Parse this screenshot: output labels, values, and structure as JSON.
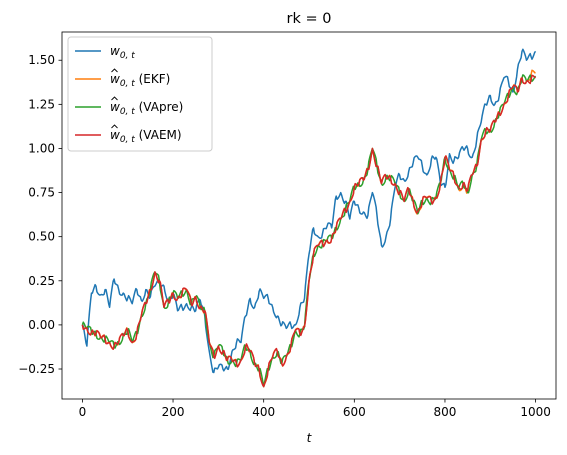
{
  "chart_data": {
    "type": "line",
    "title": "rk = 0",
    "xlabel": "t",
    "ylabel": "",
    "xlim": [
      -45,
      1045
    ],
    "ylim": [
      -0.42,
      1.66
    ],
    "xticks": [
      0,
      200,
      400,
      600,
      800,
      1000
    ],
    "xtick_labels": [
      "0",
      "200",
      "400",
      "600",
      "800",
      "1000"
    ],
    "yticks": [
      -0.25,
      0.0,
      0.25,
      0.5,
      0.75,
      1.0,
      1.25,
      1.5
    ],
    "ytick_labels": [
      "−0.25",
      "0.00",
      "0.25",
      "0.50",
      "0.75",
      "1.00",
      "1.25",
      "1.50"
    ],
    "grid": false,
    "legend_position": "top-left",
    "series": [
      {
        "name": "w0,t",
        "legend_main": "w",
        "legend_sub": "0, t",
        "legend_suffix": "",
        "hat": false,
        "color": "#1f77b4",
        "x": [
          0,
          10,
          20,
          30,
          40,
          50,
          60,
          70,
          80,
          90,
          100,
          110,
          120,
          130,
          140,
          150,
          160,
          170,
          180,
          190,
          200,
          210,
          220,
          230,
          240,
          250,
          260,
          270,
          280,
          290,
          300,
          310,
          320,
          330,
          340,
          350,
          360,
          370,
          380,
          390,
          400,
          410,
          420,
          430,
          440,
          450,
          460,
          470,
          480,
          490,
          500,
          510,
          520,
          530,
          540,
          550,
          560,
          570,
          580,
          590,
          600,
          610,
          620,
          630,
          640,
          650,
          660,
          670,
          680,
          690,
          700,
          710,
          720,
          730,
          740,
          750,
          760,
          770,
          780,
          790,
          800,
          810,
          820,
          830,
          840,
          850,
          860,
          870,
          880,
          890,
          900,
          910,
          920,
          930,
          940,
          950,
          960,
          970,
          980,
          990,
          1000
        ],
        "values": [
          0.0,
          -0.12,
          0.18,
          0.22,
          0.17,
          0.2,
          0.1,
          0.26,
          0.2,
          0.18,
          0.15,
          0.12,
          0.2,
          0.14,
          0.2,
          0.16,
          0.22,
          0.24,
          0.22,
          0.14,
          0.17,
          0.08,
          0.1,
          0.12,
          0.1,
          0.08,
          0.14,
          0.05,
          -0.15,
          -0.27,
          -0.24,
          -0.25,
          -0.25,
          -0.15,
          -0.1,
          -0.1,
          0.05,
          0.15,
          0.1,
          0.19,
          0.15,
          0.15,
          0.1,
          0.05,
          0.0,
          -0.02,
          0.0,
          0.0,
          0.1,
          0.15,
          0.4,
          0.55,
          0.5,
          0.52,
          0.56,
          0.55,
          0.73,
          0.75,
          0.7,
          0.6,
          0.7,
          0.66,
          0.64,
          0.62,
          0.75,
          0.62,
          0.45,
          0.5,
          0.6,
          0.78,
          0.85,
          0.82,
          0.87,
          0.92,
          0.95,
          0.9,
          0.85,
          0.94,
          0.95,
          0.8,
          0.78,
          0.97,
          0.93,
          0.95,
          1.0,
          1.0,
          0.95,
          1.05,
          1.15,
          1.25,
          1.3,
          1.25,
          1.3,
          1.4,
          1.38,
          1.32,
          1.45,
          1.55,
          1.5,
          1.52,
          1.55
        ]
      },
      {
        "name": "ŵ0,t (EKF)",
        "legend_main": "w",
        "legend_sub": "0, t",
        "legend_suffix": " (EKF)",
        "hat": true,
        "color": "#ff7f0e",
        "x": [
          0,
          10,
          20,
          30,
          40,
          50,
          60,
          70,
          80,
          90,
          100,
          110,
          120,
          130,
          140,
          150,
          160,
          170,
          180,
          190,
          200,
          210,
          220,
          230,
          240,
          250,
          260,
          270,
          280,
          290,
          300,
          310,
          320,
          330,
          340,
          350,
          360,
          370,
          380,
          390,
          400,
          410,
          420,
          430,
          440,
          450,
          460,
          470,
          480,
          490,
          500,
          510,
          520,
          530,
          540,
          550,
          560,
          570,
          580,
          590,
          600,
          610,
          620,
          630,
          640,
          650,
          660,
          670,
          680,
          690,
          700,
          710,
          720,
          730,
          740,
          750,
          760,
          770,
          780,
          790,
          800,
          810,
          820,
          830,
          840,
          850,
          860,
          870,
          880,
          890,
          900,
          910,
          920,
          930,
          940,
          950,
          960,
          970,
          980,
          990,
          1000
        ],
        "values": [
          0.0,
          -0.02,
          -0.04,
          -0.05,
          -0.07,
          -0.08,
          -0.1,
          -0.12,
          -0.1,
          -0.06,
          -0.03,
          -0.1,
          -0.05,
          0.05,
          0.12,
          0.2,
          0.3,
          0.25,
          0.1,
          0.13,
          0.18,
          0.15,
          0.18,
          0.2,
          0.12,
          0.16,
          0.1,
          0.08,
          -0.1,
          -0.18,
          -0.12,
          -0.15,
          -0.2,
          -0.2,
          -0.22,
          -0.2,
          -0.12,
          -0.15,
          -0.22,
          -0.25,
          -0.35,
          -0.25,
          -0.18,
          -0.15,
          -0.22,
          -0.18,
          -0.12,
          -0.03,
          -0.05,
          -0.01,
          0.25,
          0.4,
          0.45,
          0.46,
          0.48,
          0.49,
          0.55,
          0.6,
          0.65,
          0.7,
          0.78,
          0.8,
          0.82,
          0.88,
          1.0,
          0.9,
          0.8,
          0.84,
          0.83,
          0.8,
          0.75,
          0.7,
          0.77,
          0.7,
          0.63,
          0.7,
          0.72,
          0.7,
          0.72,
          0.8,
          0.95,
          0.88,
          0.84,
          0.77,
          0.8,
          0.75,
          0.85,
          0.9,
          1.05,
          1.1,
          1.1,
          1.15,
          1.2,
          1.25,
          1.3,
          1.35,
          1.32,
          1.4,
          1.38,
          1.42,
          1.43
        ]
      },
      {
        "name": "ŵ0,t (VApre)",
        "legend_main": "w",
        "legend_sub": "0, t",
        "legend_suffix": " (VApre)",
        "hat": true,
        "color": "#2ca02c",
        "x": [
          0,
          10,
          20,
          30,
          40,
          50,
          60,
          70,
          80,
          90,
          100,
          110,
          120,
          130,
          140,
          150,
          160,
          170,
          180,
          190,
          200,
          210,
          220,
          230,
          240,
          250,
          260,
          270,
          280,
          290,
          300,
          310,
          320,
          330,
          340,
          350,
          360,
          370,
          380,
          390,
          400,
          410,
          420,
          430,
          440,
          450,
          460,
          470,
          480,
          490,
          500,
          510,
          520,
          530,
          540,
          550,
          560,
          570,
          580,
          590,
          600,
          610,
          620,
          630,
          640,
          650,
          660,
          670,
          680,
          690,
          700,
          710,
          720,
          730,
          740,
          750,
          760,
          770,
          780,
          790,
          800,
          810,
          820,
          830,
          840,
          850,
          860,
          870,
          880,
          890,
          900,
          910,
          920,
          930,
          940,
          950,
          960,
          970,
          980,
          990,
          1000
        ],
        "values": [
          0.0,
          -0.02,
          -0.04,
          -0.05,
          -0.07,
          -0.08,
          -0.1,
          -0.12,
          -0.1,
          -0.06,
          -0.03,
          -0.1,
          -0.05,
          0.05,
          0.12,
          0.2,
          0.3,
          0.25,
          0.1,
          0.13,
          0.18,
          0.15,
          0.18,
          0.2,
          0.12,
          0.16,
          0.1,
          0.08,
          -0.1,
          -0.18,
          -0.12,
          -0.15,
          -0.2,
          -0.2,
          -0.22,
          -0.2,
          -0.12,
          -0.15,
          -0.22,
          -0.25,
          -0.35,
          -0.25,
          -0.18,
          -0.15,
          -0.22,
          -0.18,
          -0.12,
          -0.03,
          -0.05,
          -0.01,
          0.25,
          0.4,
          0.45,
          0.46,
          0.48,
          0.49,
          0.55,
          0.6,
          0.65,
          0.7,
          0.78,
          0.8,
          0.82,
          0.88,
          1.0,
          0.9,
          0.8,
          0.84,
          0.83,
          0.8,
          0.75,
          0.7,
          0.77,
          0.7,
          0.63,
          0.7,
          0.72,
          0.7,
          0.72,
          0.8,
          0.95,
          0.88,
          0.84,
          0.77,
          0.8,
          0.75,
          0.85,
          0.9,
          1.05,
          1.1,
          1.1,
          1.15,
          1.2,
          1.25,
          1.3,
          1.35,
          1.32,
          1.4,
          1.38,
          1.4,
          1.41
        ]
      },
      {
        "name": "ŵ0,t (VAEM)",
        "legend_main": "w",
        "legend_sub": "0, t",
        "legend_suffix": " (VAEM)",
        "hat": true,
        "color": "#d62728",
        "x": [
          0,
          10,
          20,
          30,
          40,
          50,
          60,
          70,
          80,
          90,
          100,
          110,
          120,
          130,
          140,
          150,
          160,
          170,
          180,
          190,
          200,
          210,
          220,
          230,
          240,
          250,
          260,
          270,
          280,
          290,
          300,
          310,
          320,
          330,
          340,
          350,
          360,
          370,
          380,
          390,
          400,
          410,
          420,
          430,
          440,
          450,
          460,
          470,
          480,
          490,
          500,
          510,
          520,
          530,
          540,
          550,
          560,
          570,
          580,
          590,
          600,
          610,
          620,
          630,
          640,
          650,
          660,
          670,
          680,
          690,
          700,
          710,
          720,
          730,
          740,
          750,
          760,
          770,
          780,
          790,
          800,
          810,
          820,
          830,
          840,
          850,
          860,
          870,
          880,
          890,
          900,
          910,
          920,
          930,
          940,
          950,
          960,
          970,
          980,
          990,
          1000
        ],
        "values": [
          0.0,
          -0.02,
          -0.04,
          -0.05,
          -0.07,
          -0.08,
          -0.1,
          -0.12,
          -0.1,
          -0.06,
          -0.03,
          -0.1,
          -0.05,
          0.05,
          0.12,
          0.2,
          0.3,
          0.25,
          0.1,
          0.13,
          0.18,
          0.15,
          0.18,
          0.2,
          0.12,
          0.16,
          0.1,
          0.08,
          -0.1,
          -0.18,
          -0.12,
          -0.15,
          -0.2,
          -0.2,
          -0.22,
          -0.2,
          -0.12,
          -0.15,
          -0.22,
          -0.25,
          -0.35,
          -0.25,
          -0.18,
          -0.15,
          -0.22,
          -0.18,
          -0.12,
          -0.03,
          -0.05,
          -0.01,
          0.25,
          0.4,
          0.45,
          0.46,
          0.48,
          0.49,
          0.55,
          0.6,
          0.65,
          0.7,
          0.78,
          0.8,
          0.82,
          0.88,
          1.0,
          0.9,
          0.8,
          0.84,
          0.83,
          0.8,
          0.75,
          0.7,
          0.77,
          0.7,
          0.64,
          0.7,
          0.72,
          0.7,
          0.72,
          0.8,
          0.95,
          0.88,
          0.84,
          0.78,
          0.8,
          0.76,
          0.85,
          0.9,
          1.05,
          1.1,
          1.1,
          1.15,
          1.2,
          1.25,
          1.3,
          1.35,
          1.32,
          1.4,
          1.38,
          1.39,
          1.4
        ]
      }
    ]
  }
}
